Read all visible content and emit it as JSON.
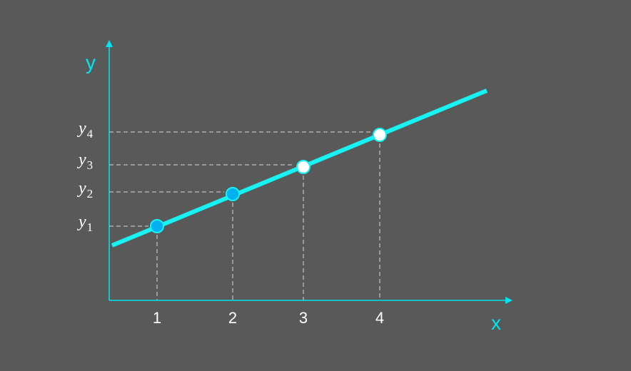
{
  "axes": {
    "x_name": "x",
    "y_name": "y",
    "color": "#00e5ee"
  },
  "chart_data": {
    "type": "line",
    "x_ticks": [
      "1",
      "2",
      "3",
      "4"
    ],
    "y_labels": [
      {
        "var": "y",
        "sub": "1"
      },
      {
        "var": "y",
        "sub": "2"
      },
      {
        "var": "y",
        "sub": "3"
      },
      {
        "var": "y",
        "sub": "4"
      }
    ],
    "points": [
      {
        "x": 1,
        "y": 1,
        "style": "filled"
      },
      {
        "x": 2,
        "y": 2,
        "style": "filled"
      },
      {
        "x": 3,
        "y": 3,
        "style": "open"
      },
      {
        "x": 4,
        "y": 4,
        "style": "open"
      }
    ],
    "line_color": "#17f2f2",
    "filled_point_color": "#00b0f0",
    "open_point_color": "#ffffff"
  }
}
